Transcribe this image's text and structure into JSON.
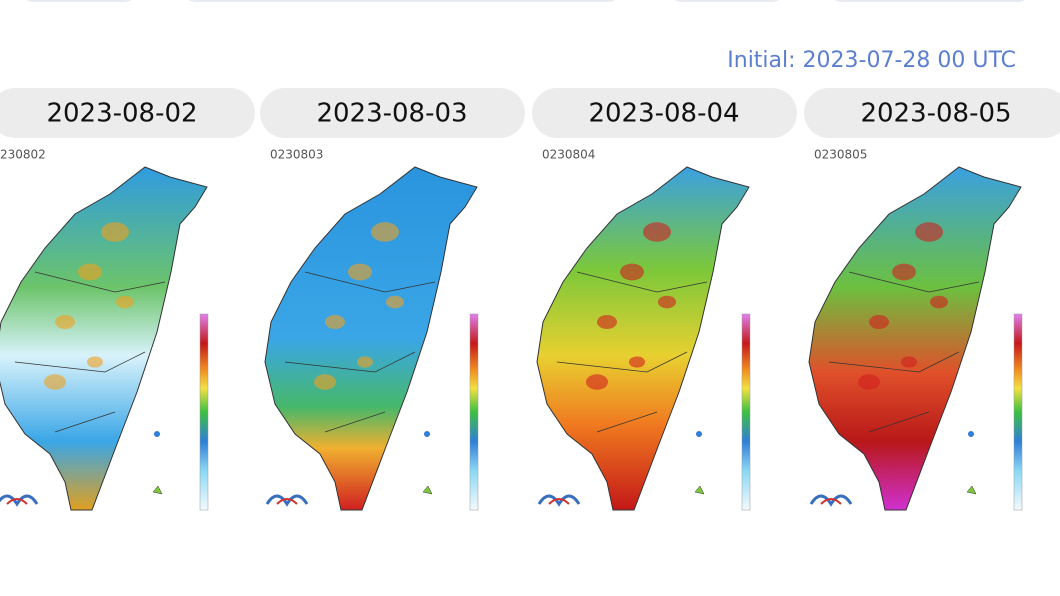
{
  "initial": "Initial: 2023-07-28 00 UTC",
  "panels": [
    {
      "date": "2023-08-02",
      "map_label": "230802"
    },
    {
      "date": "2023-08-03",
      "map_label": "0230803"
    },
    {
      "date": "2023-08-04",
      "map_label": "0230804"
    },
    {
      "date": "2023-08-05",
      "map_label": "0230805"
    }
  ]
}
